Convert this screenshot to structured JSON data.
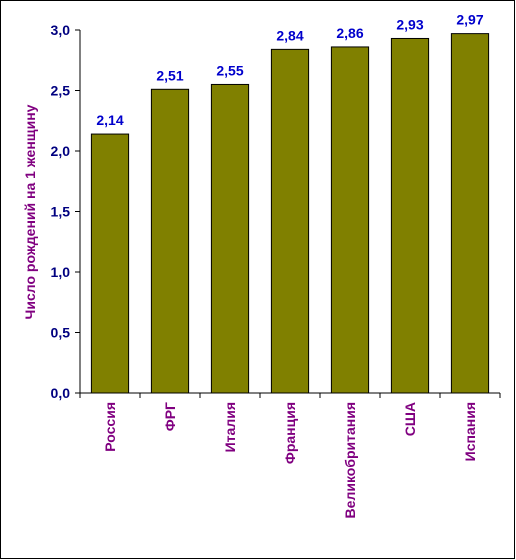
{
  "chart_data": {
    "type": "bar",
    "categories": [
      "Россия",
      "ФРГ",
      "Италия",
      "Франция",
      "Великобритания",
      "США",
      "Испания"
    ],
    "values": [
      2.14,
      2.51,
      2.55,
      2.84,
      2.86,
      2.93,
      2.97
    ],
    "data_labels": [
      "2,14",
      "2,51",
      "2,55",
      "2,84",
      "2,86",
      "2,93",
      "2,97"
    ],
    "xlabel": "",
    "ylabel": "Число рождений на 1 женщину",
    "ylim": [
      0,
      3.0
    ],
    "yticks": [
      0,
      0.5,
      1.0,
      1.5,
      2.0,
      2.5,
      3.0
    ],
    "ytick_labels": [
      "0,0",
      "0,5",
      "1,0",
      "1,5",
      "2,0",
      "2,5",
      "3,0"
    ],
    "grid": false,
    "legend": "none",
    "colors": {
      "bar_fill": "#808000",
      "bar_stroke": "#000000",
      "data_label": "#0000cc",
      "y_tick_label": "#000080",
      "x_tick_label": "#800080",
      "axis_title": "#800080"
    }
  }
}
